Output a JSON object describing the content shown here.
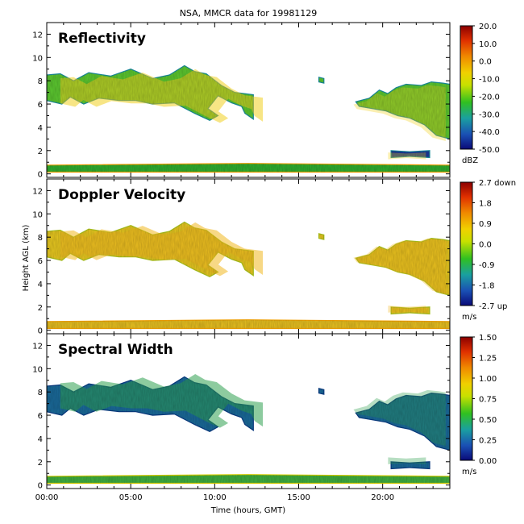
{
  "title": "NSA, MMCR data for 19981129",
  "chart_data": {
    "type": "heatmap",
    "title": "NSA, MMCR data for 19981129",
    "xlabel": "Time (hours, GMT)",
    "ylabel": "Height AGL (km)",
    "xlim": [
      0,
      24
    ],
    "x_ticks": [
      "00:00",
      "05:00",
      "10:00",
      "15:00",
      "20:00"
    ],
    "x_tick_values": [
      0,
      5,
      10,
      15,
      20
    ],
    "ylim": [
      -0.3,
      13
    ],
    "y_ticks": [
      "0",
      "2",
      "4",
      "6",
      "8",
      "10",
      "12"
    ],
    "y_tick_values": [
      0,
      2,
      4,
      6,
      8,
      10,
      12
    ],
    "panels": [
      {
        "name": "Reflectivity",
        "units": "dBZ",
        "colorbar_ticks": [
          "20.0",
          "10.0",
          "0.0",
          "-10.0",
          "-20.0",
          "-30.0",
          "-40.0",
          "-50.0"
        ],
        "range": [
          -50,
          20
        ],
        "typical_value": "-15 to -25 in upper cloud (green/yellow), -30 to -45 in edges and low cloud"
      },
      {
        "name": "Doppler Velocity",
        "units": "m/s",
        "colorbar_ticks": [
          "2.7 down",
          "1.8",
          "0.9",
          "0.0",
          "-0.9",
          "-1.8",
          "-2.7 up"
        ],
        "range": [
          -2.7,
          2.7
        ],
        "typical_value": "approximately 0.0 to 0.5 down throughout"
      },
      {
        "name": "Spectral Width",
        "units": "m/s",
        "colorbar_ticks": [
          "1.50",
          "1.25",
          "1.00",
          "0.75",
          "0.50",
          "0.25",
          "0.00"
        ],
        "range": [
          0,
          1.5
        ],
        "typical_value": "0.1 to 0.4 mostly, up to 0.7 near 9-11 h at 7-8 km"
      }
    ],
    "cloud_features": [
      {
        "description": "upper cloud layer",
        "time_start_h": 0,
        "time_end_h": 12.3,
        "base_km": 4.5,
        "top_km": 9.3
      },
      {
        "description": "upper cloud layer",
        "time_start_h": 18.4,
        "time_end_h": 24,
        "base_km": 3.0,
        "top_km": 8.0
      },
      {
        "description": "small echo",
        "time_start_h": 16.2,
        "time_end_h": 16.5,
        "base_km": 7.8,
        "top_km": 8.3
      },
      {
        "description": "low echo band",
        "time_start_h": 20.5,
        "time_end_h": 22.8,
        "base_km": 1.4,
        "top_km": 2.0
      },
      {
        "description": "near-surface clutter layer",
        "time_start_h": 0,
        "time_end_h": 24,
        "base_km": 0,
        "top_km": 0.8
      }
    ]
  },
  "colors": {
    "colormap": [
      "#0a0a78",
      "#1a50b4",
      "#1aa0a0",
      "#30c020",
      "#c8e000",
      "#f0d000",
      "#f08a00",
      "#e03000",
      "#8b0000"
    ],
    "background": "#ffffff"
  }
}
